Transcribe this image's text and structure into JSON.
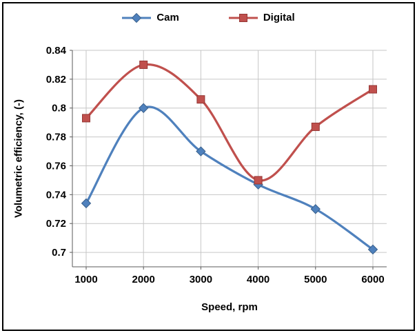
{
  "chart_data": {
    "type": "line",
    "x": [
      1000,
      2000,
      3000,
      4000,
      5000,
      6000
    ],
    "x_labels": [
      "1000",
      "2000",
      "3000",
      "4000",
      "5000",
      "6000"
    ],
    "series": [
      {
        "name": "Cam",
        "values": [
          0.734,
          0.8,
          0.77,
          0.747,
          0.73,
          0.702
        ],
        "color": "#4F81BD",
        "edge_color": "#39608C",
        "marker": "diamond"
      },
      {
        "name": "Digital",
        "values": [
          0.793,
          0.83,
          0.806,
          0.75,
          0.787,
          0.813
        ],
        "color": "#C0504D",
        "edge_color": "#953735",
        "marker": "square"
      }
    ],
    "title": "",
    "xlabel": "Speed, rpm",
    "ylabel": "Volumetric efficiency, (-)",
    "ylim": [
      0.69,
      0.84
    ],
    "yticks": [
      0.7,
      0.72,
      0.74,
      0.76,
      0.78,
      0.8,
      0.82,
      0.84
    ],
    "grid": true,
    "legend_position": "top",
    "smooth": true
  },
  "chart_style": {
    "grid_color": "#C6C6C6",
    "axis_color": "#595959",
    "background": "#FFFFFF",
    "frame_border": "#000000"
  }
}
